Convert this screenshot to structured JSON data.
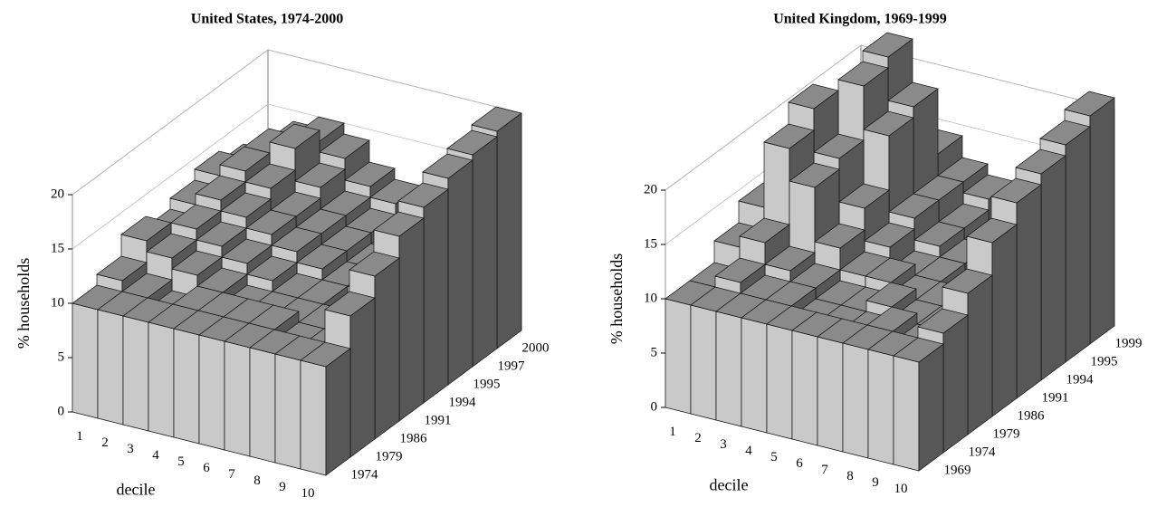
{
  "chart_data": [
    {
      "type": "bar3d",
      "title": "United States, 1974-2000",
      "ylabel": "% households",
      "xlabel": "decile",
      "categories": [
        "1",
        "2",
        "3",
        "4",
        "5",
        "6",
        "7",
        "8",
        "9",
        "10"
      ],
      "ylim": [
        0,
        20
      ],
      "yticks": [
        0,
        5,
        10,
        15,
        20
      ],
      "grid": true,
      "series": [
        {
          "name": "1974",
          "values": [
            10,
            10,
            10,
            10,
            10,
            10,
            10,
            10,
            10,
            10
          ]
        },
        {
          "name": "1979",
          "values": [
            11,
            10,
            9,
            10,
            10,
            10,
            10,
            9,
            9,
            13
          ]
        },
        {
          "name": "1986",
          "values": [
            13,
            12,
            11,
            10,
            9,
            9,
            9,
            9,
            8,
            15
          ]
        },
        {
          "name": "1991",
          "values": [
            12,
            13,
            12,
            11,
            10,
            9,
            9,
            8,
            8,
            17
          ]
        },
        {
          "name": "1994",
          "values": [
            13,
            14,
            13,
            12,
            11,
            10,
            9,
            9,
            8,
            18
          ]
        },
        {
          "name": "1995",
          "values": [
            14,
            15,
            14,
            12,
            11,
            10,
            9,
            8,
            8,
            19
          ]
        },
        {
          "name": "1997",
          "values": [
            13,
            15,
            16,
            13,
            11,
            10,
            9,
            9,
            8,
            19.5
          ]
        },
        {
          "name": "2000",
          "values": [
            12,
            14,
            15,
            14,
            12,
            11,
            10,
            9,
            8,
            20
          ]
        }
      ]
    },
    {
      "type": "bar3d",
      "title": "United Kingdom, 1969-1999",
      "ylabel": "% households",
      "xlabel": "decile",
      "categories": [
        "1",
        "2",
        "3",
        "4",
        "5",
        "6",
        "7",
        "8",
        "9",
        "10"
      ],
      "ylim": [
        0,
        20
      ],
      "yticks": [
        0,
        5,
        10,
        15,
        20
      ],
      "grid": true,
      "series": [
        {
          "name": "1969",
          "values": [
            10,
            10,
            10,
            10,
            10,
            10,
            10,
            10,
            10,
            10
          ]
        },
        {
          "name": "1974",
          "values": [
            10,
            11,
            10,
            10,
            9,
            9,
            9,
            10,
            9,
            11
          ]
        },
        {
          "name": "1979",
          "values": [
            12,
            13,
            11,
            10,
            9,
            9,
            10,
            9,
            9,
            13
          ]
        },
        {
          "name": "1986",
          "values": [
            14,
            20,
            17,
            12,
            10,
            10,
            9,
            9,
            9,
            16
          ]
        },
        {
          "name": "1991",
          "values": [
            13,
            22,
            18,
            14,
            11,
            9,
            9,
            8,
            9,
            18
          ]
        },
        {
          "name": "1994",
          "values": [
            12,
            17,
            23,
            19,
            12,
            10,
            9,
            8,
            9,
            19
          ]
        },
        {
          "name": "1995",
          "values": [
            12,
            16,
            24,
            20,
            12,
            10,
            9,
            9,
            9,
            20
          ]
        },
        {
          "name": "1999",
          "values": [
            12,
            13,
            15,
            14,
            12,
            11,
            9,
            9,
            9,
            21
          ]
        }
      ]
    }
  ]
}
